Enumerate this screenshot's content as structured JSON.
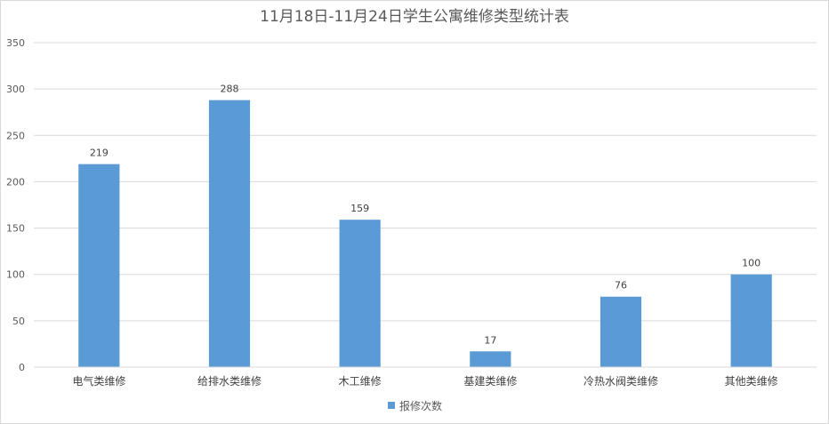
{
  "chart_data": {
    "type": "bar",
    "title": "11月18日-11月24日学生公寓维修类型统计表",
    "categories": [
      "电气类维修",
      "给排水类维修",
      "木工维修",
      "基建类维修",
      "冷热水阀类维修",
      "其他类维修"
    ],
    "series": [
      {
        "name": "报修次数",
        "values": [
          219,
          288,
          159,
          17,
          76,
          100
        ],
        "color": "#5b9bd5"
      }
    ],
    "ylim": [
      0,
      350
    ],
    "yticks": [
      0,
      50,
      100,
      150,
      200,
      250,
      300,
      350
    ],
    "grid": true,
    "data_labels": true,
    "legend_position": "bottom"
  }
}
